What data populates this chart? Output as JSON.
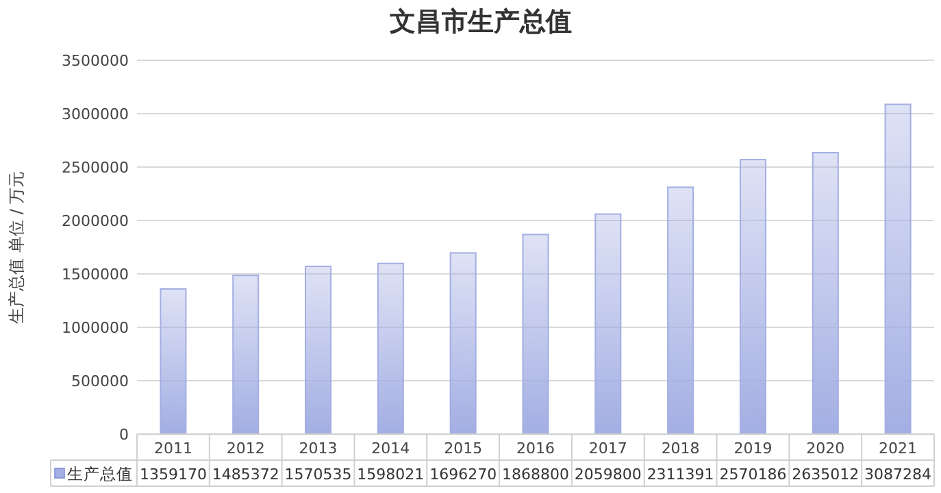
{
  "chart_data": {
    "type": "bar",
    "title": "文昌市生产总值",
    "ylabel": "生产总值 单位 / 万元",
    "categories": [
      "2011",
      "2012",
      "2013",
      "2014",
      "2015",
      "2016",
      "2017",
      "2018",
      "2019",
      "2020",
      "2021"
    ],
    "series": [
      {
        "name": "生产总值",
        "color": "#a3aee3",
        "values": [
          1359170,
          1485372,
          1570535,
          1598021,
          1696270,
          1868800,
          2059800,
          2311391,
          2570186,
          2635012,
          3087284
        ]
      }
    ],
    "ylim": [
      0,
      3500000
    ],
    "yticks": [
      0,
      500000,
      1000000,
      1500000,
      2000000,
      2500000,
      3000000,
      3500000
    ],
    "grid": "y",
    "data_labels": true,
    "legend": "bottom"
  }
}
